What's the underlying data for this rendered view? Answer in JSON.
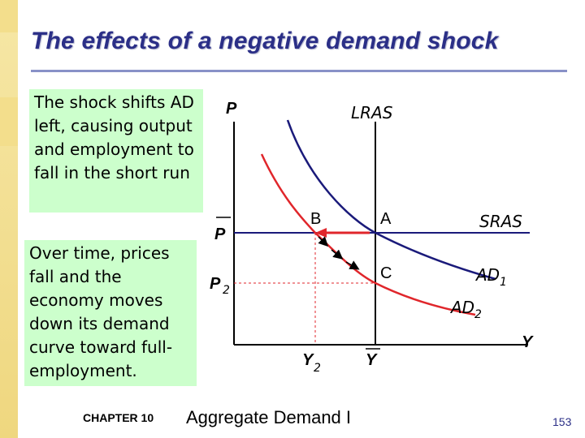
{
  "slide": {
    "title": "The effects of a negative demand shock",
    "text_box_1": "The shock shifts AD left, causing output and employment to fall in the short run",
    "text_box_2": "Over time, prices fall and the economy moves down its demand curve toward full-employment."
  },
  "footer": {
    "chapter": "CHAPTER 10",
    "subject": "Aggregate Demand I",
    "page_number": "153"
  },
  "diagram": {
    "y_axis_label": "P",
    "x_axis_label": "Y",
    "p_bar_label": "P",
    "p2_label": "P",
    "p2_subscript": "2",
    "y2_label": "Y",
    "y2_subscript": "2",
    "y_bar_label": "Y",
    "lras_label": "LRAS",
    "sras_label": "SRAS",
    "ad1_label": "AD",
    "ad1_subscript": "1",
    "ad2_label": "AD",
    "ad2_subscript": "2",
    "point_a": "A",
    "point_b": "B",
    "point_c": "C",
    "colors": {
      "ad1": "#1a1a7a",
      "ad2": "#e0262b",
      "sras": "#1a1a7a",
      "axis": "#000000",
      "guide": "#e0262b"
    }
  }
}
